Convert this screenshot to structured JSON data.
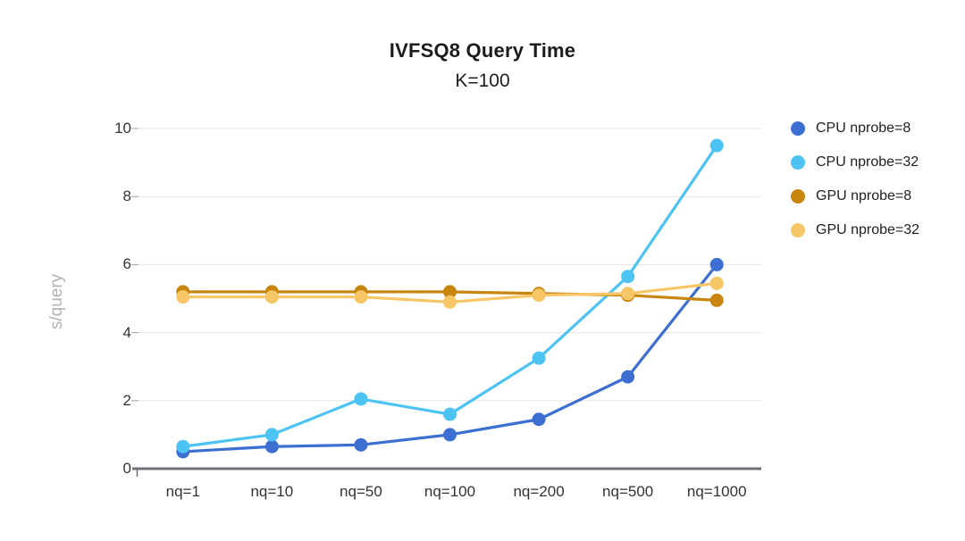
{
  "chart_data": {
    "type": "line",
    "title": "IVFSQ8 Query Time",
    "subtitle": "K=100",
    "xlabel": "",
    "ylabel": "s/query",
    "categories": [
      "nq=1",
      "nq=10",
      "nq=50",
      "nq=100",
      "nq=200",
      "nq=500",
      "nq=1000"
    ],
    "series": [
      {
        "name": "CPU nprobe=8",
        "color": "#3c6fd1",
        "values": [
          0.5,
          0.65,
          0.7,
          1.0,
          1.45,
          2.7,
          6.0
        ]
      },
      {
        "name": "CPU nprobe=32",
        "color": "#4cc3f2",
        "values": [
          0.65,
          1.0,
          2.05,
          1.6,
          3.25,
          5.65,
          9.5
        ]
      },
      {
        "name": "GPU nprobe=8",
        "color": "#c9860e",
        "values": [
          5.2,
          5.2,
          5.2,
          5.2,
          5.15,
          5.1,
          4.95
        ]
      },
      {
        "name": "GPU nprobe=32",
        "color": "#f7c767",
        "values": [
          5.05,
          5.05,
          5.05,
          4.9,
          5.1,
          5.15,
          5.45
        ]
      }
    ],
    "ylim": [
      0,
      10
    ],
    "yticks": [
      0,
      2,
      4,
      6,
      8,
      10
    ],
    "grid": true,
    "legend_position": "right"
  },
  "colors": {
    "background": "#ffffff",
    "gridline": "#e6e6e6",
    "axis_line": "#6e7177",
    "tick_stub": "#9aa0a6",
    "tick_label": "#333333",
    "axis_title": "#b1b1bb",
    "title": "#1c1c1c"
  }
}
